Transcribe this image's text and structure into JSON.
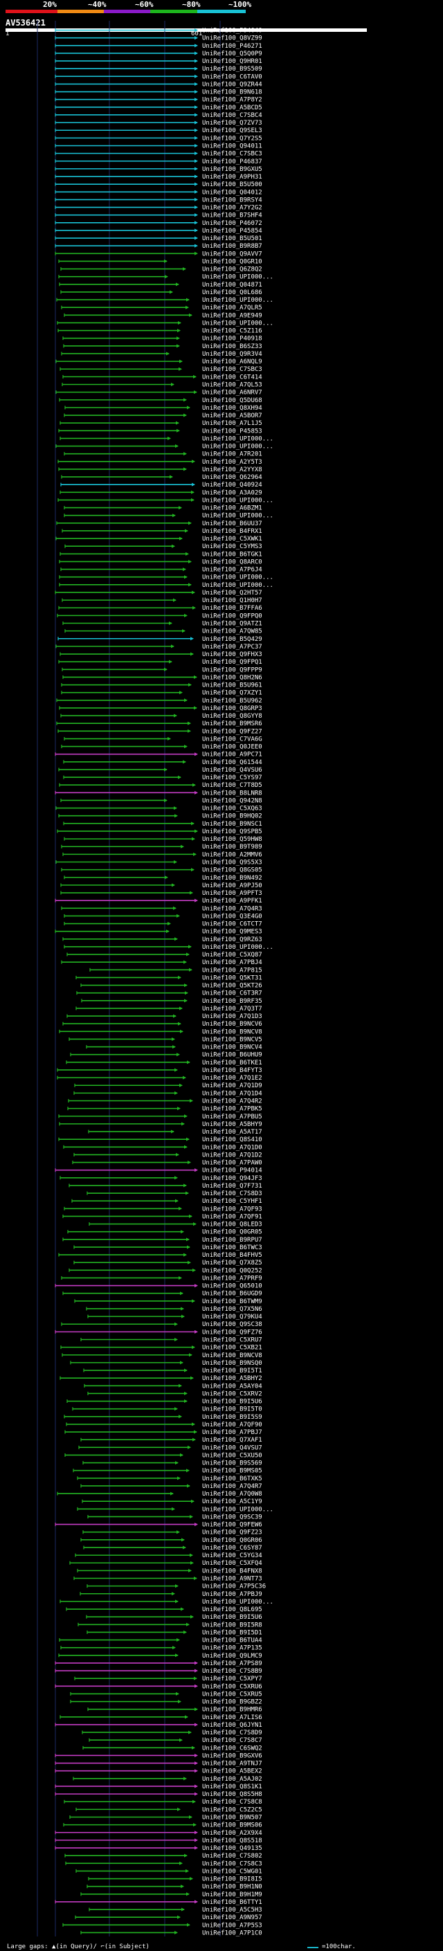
{
  "legend": {
    "labels": [
      "20%",
      "~40%",
      "~60%",
      "~80%",
      "~100%"
    ],
    "colors": [
      "#e0121a",
      "#f08a14",
      "#8a1ac9",
      "#1db51d",
      "#19c2d6"
    ]
  },
  "query": {
    "name": "AV536421",
    "start": "1",
    "end": "601"
  },
  "footer": {
    "text": "Large gaps: ▲(in Query)/ ⌐(in Subject)",
    "scale_label": "=100char."
  },
  "hits": [
    {
      "label": "UniRef100_P94040",
      "color": "cyan"
    },
    {
      "label": "UniRef100_Q8VZ99",
      "color": "cyan"
    },
    {
      "label": "UniRef100_P46271",
      "color": "cyan"
    },
    {
      "label": "UniRef100_Q5Q0P9",
      "color": "cyan"
    },
    {
      "label": "UniRef100_Q9HR01",
      "color": "cyan"
    },
    {
      "label": "UniRef100_B9S509",
      "color": "cyan"
    },
    {
      "label": "UniRef100_C6TAV0",
      "color": "cyan"
    },
    {
      "label": "UniRef100_Q9ZR44",
      "color": "cyan"
    },
    {
      "label": "UniRef100_B9N618",
      "color": "cyan"
    },
    {
      "label": "UniRef100_A7P8Y2",
      "color": "cyan"
    },
    {
      "label": "UniRef100_A5BCD5",
      "color": "cyan"
    },
    {
      "label": "UniRef100_C7SBC4",
      "color": "cyan"
    },
    {
      "label": "UniRef100_Q7ZV73",
      "color": "cyan"
    },
    {
      "label": "UniRef100_Q9SEL3",
      "color": "cyan"
    },
    {
      "label": "UniRef100_Q7Y2S5",
      "color": "cyan"
    },
    {
      "label": "UniRef100_Q94011",
      "color": "cyan"
    },
    {
      "label": "UniRef100_C7SBC3",
      "color": "cyan"
    },
    {
      "label": "UniRef100_P46837",
      "color": "cyan"
    },
    {
      "label": "UniRef100_B9GXU5",
      "color": "cyan"
    },
    {
      "label": "UniRef100_A9PH31",
      "color": "cyan"
    },
    {
      "label": "UniRef100_B5U500",
      "color": "cyan"
    },
    {
      "label": "UniRef100_Q04012",
      "color": "cyan"
    },
    {
      "label": "UniRef100_B9RSY4",
      "color": "cyan"
    },
    {
      "label": "UniRef100_A7Y2G2",
      "color": "cyan"
    },
    {
      "label": "UniRef100_B7SHF4",
      "color": "cyan"
    },
    {
      "label": "UniRef100_P46072",
      "color": "cyan"
    },
    {
      "label": "UniRef100_P45854",
      "color": "cyan"
    },
    {
      "label": "UniRef100_B5U501",
      "color": "cyan"
    },
    {
      "label": "UniRef100_B9R8B7",
      "color": "cyan"
    },
    {
      "label": "UniRef100_Q9AVV7",
      "color": "green"
    },
    {
      "label": "UniRef100_Q0GR10",
      "color": "green"
    },
    {
      "label": "UniRef100_Q6Z8Q2",
      "color": "green"
    },
    {
      "label": "UniRef100_UPI000...",
      "color": "green"
    },
    {
      "label": "UniRef100_Q04871",
      "color": "green"
    },
    {
      "label": "UniRef100_Q0L686",
      "color": "green"
    },
    {
      "label": "UniRef100_UPI000...",
      "color": "green"
    },
    {
      "label": "UniRef100_A7QLR5",
      "color": "green"
    },
    {
      "label": "UniRef100_A9E949",
      "color": "green"
    },
    {
      "label": "UniRef100_UPI000...",
      "color": "green"
    },
    {
      "label": "UniRef100_C5Z116",
      "color": "green"
    },
    {
      "label": "UniRef100_P40918",
      "color": "green"
    },
    {
      "label": "UniRef100_B6SZ33",
      "color": "green"
    },
    {
      "label": "UniRef100_Q9R3V4",
      "color": "green"
    },
    {
      "label": "UniRef100_A6NQL9",
      "color": "green"
    },
    {
      "label": "UniRef100_C7SBC3",
      "color": "green"
    },
    {
      "label": "UniRef100_C6T414",
      "color": "green"
    },
    {
      "label": "UniRef100_A7QL53",
      "color": "green"
    },
    {
      "label": "UniRef100_A6NRV7",
      "color": "green"
    },
    {
      "label": "UniRef100_Q5DU68",
      "color": "green"
    },
    {
      "label": "UniRef100_Q8XH94",
      "color": "green"
    },
    {
      "label": "UniRef100_A5BOR7",
      "color": "green"
    },
    {
      "label": "UniRef100_A7L1J5",
      "color": "green"
    },
    {
      "label": "UniRef100_P45853",
      "color": "green"
    },
    {
      "label": "UniRef100_UPI000...",
      "color": "green"
    },
    {
      "label": "UniRef100_UPI000...",
      "color": "green"
    },
    {
      "label": "UniRef100_A7R201",
      "color": "green"
    },
    {
      "label": "UniRef100_A2Y5T3",
      "color": "green"
    },
    {
      "label": "UniRef100_A2YYX8",
      "color": "green"
    },
    {
      "label": "UniRef100_Q62964",
      "color": "green"
    },
    {
      "label": "UniRef100_Q40924",
      "color": "cyan"
    },
    {
      "label": "UniRef100_A3A029",
      "color": "green"
    },
    {
      "label": "UniRef100_UPI000...",
      "color": "green"
    },
    {
      "label": "UniRef100_A6BZM1",
      "color": "green"
    },
    {
      "label": "UniRef100_UPI000...",
      "color": "green"
    },
    {
      "label": "UniRef100_B6UU37",
      "color": "green"
    },
    {
      "label": "UniRef100_B4FRX1",
      "color": "green"
    },
    {
      "label": "UniRef100_C5XWK1",
      "color": "green"
    },
    {
      "label": "UniRef100_C5YMS3",
      "color": "green"
    },
    {
      "label": "UniRef100_B6TGK1",
      "color": "green"
    },
    {
      "label": "UniRef100_Q8ARC0",
      "color": "green"
    },
    {
      "label": "UniRef100_A7P6J4",
      "color": "green"
    },
    {
      "label": "UniRef100_UPI000...",
      "color": "green"
    },
    {
      "label": "UniRef100_UPI000...",
      "color": "green"
    },
    {
      "label": "UniRef100_Q2HT57",
      "color": "green"
    },
    {
      "label": "UniRef100_Q1H0H7",
      "color": "green"
    },
    {
      "label": "UniRef100_B7FFA6",
      "color": "green"
    },
    {
      "label": "UniRef100_Q9FPQ0",
      "color": "green"
    },
    {
      "label": "UniRef100_Q9ATZ1",
      "color": "green"
    },
    {
      "label": "UniRef100_A7QW85",
      "color": "green"
    },
    {
      "label": "UniRef100_B5Q429",
      "color": "cyan"
    },
    {
      "label": "UniRef100_A7PC37",
      "color": "green"
    },
    {
      "label": "UniRef100_Q9FHX3",
      "color": "green"
    },
    {
      "label": "UniRef100_Q9FPQ1",
      "color": "green"
    },
    {
      "label": "UniRef100_Q9FPP9",
      "color": "green"
    },
    {
      "label": "UniRef100_Q8H2N6",
      "color": "green"
    },
    {
      "label": "UniRef100_B5U961",
      "color": "green"
    },
    {
      "label": "UniRef100_Q7XZY1",
      "color": "green"
    },
    {
      "label": "UniRef100_B5U962",
      "color": "green"
    },
    {
      "label": "UniRef100_Q8GRP3",
      "color": "green"
    },
    {
      "label": "UniRef100_Q8GYY8",
      "color": "green"
    },
    {
      "label": "UniRef100_B9MSR6",
      "color": "green"
    },
    {
      "label": "UniRef100_Q9FZ27",
      "color": "green"
    },
    {
      "label": "UniRef100_C7VA6G",
      "color": "green"
    },
    {
      "label": "UniRef100_Q0JEE0",
      "color": "green"
    },
    {
      "label": "UniRef100_A9PC71",
      "color": "magenta"
    },
    {
      "label": "UniRef100_Q61544",
      "color": "green"
    },
    {
      "label": "UniRef100_Q4VSU6",
      "color": "green"
    },
    {
      "label": "UniRef100_C5YS97",
      "color": "green"
    },
    {
      "label": "UniRef100_C7T8D5",
      "color": "green"
    },
    {
      "label": "UniRef100_B8LNR8",
      "color": "magenta"
    },
    {
      "label": "UniRef100_Q942N8",
      "color": "green"
    },
    {
      "label": "UniRef100_C5XQ63",
      "color": "green"
    },
    {
      "label": "UniRef100_B9HQ02",
      "color": "green"
    },
    {
      "label": "UniRef100_B9NSC1",
      "color": "green"
    },
    {
      "label": "UniRef100_Q9SPB5",
      "color": "green"
    },
    {
      "label": "UniRef100_Q59HW8",
      "color": "green"
    },
    {
      "label": "UniRef100_B9T989",
      "color": "green"
    },
    {
      "label": "UniRef100_A2MMV6",
      "color": "green"
    },
    {
      "label": "UniRef100_Q9S5X3",
      "color": "green"
    },
    {
      "label": "UniRef100_Q8GS05",
      "color": "green"
    },
    {
      "label": "UniRef100_B9N492",
      "color": "green"
    },
    {
      "label": "UniRef100_A9PJ50",
      "color": "green"
    },
    {
      "label": "UniRef100_A9PFT3",
      "color": "green"
    },
    {
      "label": "UniRef100_A9PFK1",
      "color": "magenta"
    },
    {
      "label": "UniRef100_A7Q4R3",
      "color": "green"
    },
    {
      "label": "UniRef100_Q3E4G0",
      "color": "green"
    },
    {
      "label": "UniRef100_C6TCT7",
      "color": "green"
    },
    {
      "label": "UniRef100_Q9MES3",
      "color": "green"
    },
    {
      "label": "UniRef100_Q9RZ63",
      "color": "green"
    },
    {
      "label": "UniRef100_UPI000...",
      "color": "green"
    },
    {
      "label": "UniRef100_C5XQ87",
      "color": "green"
    },
    {
      "label": "UniRef100_A7PBJ4",
      "color": "green"
    },
    {
      "label": "UniRef100_A7P815",
      "color": "green"
    },
    {
      "label": "UniRef100_Q5KT31",
      "color": "green"
    },
    {
      "label": "UniRef100_Q5KT26",
      "color": "green"
    },
    {
      "label": "UniRef100_C6T3R7",
      "color": "green"
    },
    {
      "label": "UniRef100_B9RF35",
      "color": "green"
    },
    {
      "label": "UniRef100_A7Q3T7",
      "color": "green"
    },
    {
      "label": "UniRef100_A7Q1D3",
      "color": "green"
    },
    {
      "label": "UniRef100_B9NCV6",
      "color": "green"
    },
    {
      "label": "UniRef100_B9NCV8",
      "color": "green"
    },
    {
      "label": "UniRef100_B9NCV5",
      "color": "green"
    },
    {
      "label": "UniRef100_B9NCV4",
      "color": "green"
    },
    {
      "label": "UniRef100_B6UHU9",
      "color": "green"
    },
    {
      "label": "UniRef100_B6TKE1",
      "color": "green"
    },
    {
      "label": "UniRef100_B4FYT3",
      "color": "green"
    },
    {
      "label": "UniRef100_A7Q1E2",
      "color": "green"
    },
    {
      "label": "UniRef100_A7Q1D9",
      "color": "green"
    },
    {
      "label": "UniRef100_A7Q1D4",
      "color": "green"
    },
    {
      "label": "UniRef100_A7Q4R2",
      "color": "green"
    },
    {
      "label": "UniRef100_A7PBK5",
      "color": "green"
    },
    {
      "label": "UniRef100_A7PBU5",
      "color": "green"
    },
    {
      "label": "UniRef100_A5BHY9",
      "color": "green"
    },
    {
      "label": "UniRef100_A5AT17",
      "color": "green"
    },
    {
      "label": "UniRef100_Q8S410",
      "color": "green"
    },
    {
      "label": "UniRef100_A7Q1D0",
      "color": "green"
    },
    {
      "label": "UniRef100_A7Q1D2",
      "color": "green"
    },
    {
      "label": "UniRef100_A7PAW0",
      "color": "green"
    },
    {
      "label": "UniRef100_P94014",
      "color": "magenta"
    },
    {
      "label": "UniRef100_Q94JF3",
      "color": "green"
    },
    {
      "label": "UniRef100_Q7F731",
      "color": "green"
    },
    {
      "label": "UniRef100_C7S8D3",
      "color": "green"
    },
    {
      "label": "UniRef100_C5YHF1",
      "color": "green"
    },
    {
      "label": "UniRef100_A7QF93",
      "color": "green"
    },
    {
      "label": "UniRef100_A7QF91",
      "color": "green"
    },
    {
      "label": "UniRef100_Q8LED3",
      "color": "green"
    },
    {
      "label": "UniRef100_Q0GR05",
      "color": "green"
    },
    {
      "label": "UniRef100_B9RPU7",
      "color": "green"
    },
    {
      "label": "UniRef100_B6TWC3",
      "color": "green"
    },
    {
      "label": "UniRef100_B4FHV5",
      "color": "green"
    },
    {
      "label": "UniRef100_Q7X8Z5",
      "color": "green"
    },
    {
      "label": "UniRef100_Q0Q252",
      "color": "green"
    },
    {
      "label": "UniRef100_A7PRF9",
      "color": "green"
    },
    {
      "label": "UniRef100_Q65010",
      "color": "magenta"
    },
    {
      "label": "UniRef100_B6UGD9",
      "color": "green"
    },
    {
      "label": "UniRef100_B6TWM9",
      "color": "green"
    },
    {
      "label": "UniRef100_Q7X5N6",
      "color": "green"
    },
    {
      "label": "UniRef100_Q79KU4",
      "color": "green"
    },
    {
      "label": "UniRef100_Q9SC38",
      "color": "green"
    },
    {
      "label": "UniRef100_Q9FZ76",
      "color": "magenta"
    },
    {
      "label": "UniRef100_C5XRU7",
      "color": "green"
    },
    {
      "label": "UniRef100_C5XB21",
      "color": "green"
    },
    {
      "label": "UniRef100_B9NCV8",
      "color": "green"
    },
    {
      "label": "UniRef100_B9NSQ0",
      "color": "green"
    },
    {
      "label": "UniRef100_B9I5T1",
      "color": "green"
    },
    {
      "label": "UniRef100_A5BHY2",
      "color": "green"
    },
    {
      "label": "UniRef100_A5AY04",
      "color": "green"
    },
    {
      "label": "UniRef100_C5XRV2",
      "color": "green"
    },
    {
      "label": "UniRef100_B9I5U6",
      "color": "green"
    },
    {
      "label": "UniRef100_B9I5T0",
      "color": "green"
    },
    {
      "label": "UniRef100_B9I5S9",
      "color": "green"
    },
    {
      "label": "UniRef100_A7QF90",
      "color": "green"
    },
    {
      "label": "UniRef100_A7PBJ7",
      "color": "green"
    },
    {
      "label": "UniRef100_Q7XAF1",
      "color": "green"
    },
    {
      "label": "UniRef100_Q4VSU7",
      "color": "green"
    },
    {
      "label": "UniRef100_C5XU50",
      "color": "green"
    },
    {
      "label": "UniRef100_B9S569",
      "color": "green"
    },
    {
      "label": "UniRef100_B9MS05",
      "color": "green"
    },
    {
      "label": "UniRef100_B6TXK5",
      "color": "green"
    },
    {
      "label": "UniRef100_A7Q4R7",
      "color": "green"
    },
    {
      "label": "UniRef100_A7Q0W8",
      "color": "green"
    },
    {
      "label": "UniRef100_A5C1Y9",
      "color": "green"
    },
    {
      "label": "UniRef100_UPI000...",
      "color": "green"
    },
    {
      "label": "UniRef100_Q9SC39",
      "color": "green"
    },
    {
      "label": "UniRef100_Q9FEW6",
      "color": "magenta"
    },
    {
      "label": "UniRef100_Q9FZ23",
      "color": "green"
    },
    {
      "label": "UniRef100_Q0GR06",
      "color": "green"
    },
    {
      "label": "UniRef100_C6SY87",
      "color": "green"
    },
    {
      "label": "UniRef100_C5YG34",
      "color": "green"
    },
    {
      "label": "UniRef100_C5XFQ4",
      "color": "green"
    },
    {
      "label": "UniRef100_B4FNX8",
      "color": "green"
    },
    {
      "label": "UniRef100_A9NT73",
      "color": "green"
    },
    {
      "label": "UniRef100_A7P5C36",
      "color": "green"
    },
    {
      "label": "UniRef100_A7PBJ9",
      "color": "green"
    },
    {
      "label": "UniRef100_UPI000...",
      "color": "green"
    },
    {
      "label": "UniRef100_Q8L695",
      "color": "green"
    },
    {
      "label": "UniRef100_B9I5U6",
      "color": "green"
    },
    {
      "label": "UniRef100_B9I5R8",
      "color": "green"
    },
    {
      "label": "UniRef100_B9I5D1",
      "color": "green"
    },
    {
      "label": "UniRef100_B6TUA4",
      "color": "green"
    },
    {
      "label": "UniRef100_A7P135",
      "color": "green"
    },
    {
      "label": "UniRef100_Q9LMC9",
      "color": "green"
    },
    {
      "label": "UniRef100_A7PS89",
      "color": "magenta"
    },
    {
      "label": "UniRef100_C7S8B9",
      "color": "magenta"
    },
    {
      "label": "UniRef100_C5XPY7",
      "color": "green"
    },
    {
      "label": "UniRef100_C5XRU6",
      "color": "magenta"
    },
    {
      "label": "UniRef100_C5XRU5",
      "color": "green"
    },
    {
      "label": "UniRef100_B9GBZ2",
      "color": "green"
    },
    {
      "label": "UniRef100_B9HMR6",
      "color": "green"
    },
    {
      "label": "UniRef100_A7LIS6",
      "color": "green"
    },
    {
      "label": "UniRef100_Q6JYN1",
      "color": "magenta"
    },
    {
      "label": "UniRef100_C7S8D9",
      "color": "green"
    },
    {
      "label": "UniRef100_C7S8C7",
      "color": "green"
    },
    {
      "label": "UniRef100_C6SWQ2",
      "color": "green"
    },
    {
      "label": "UniRef100_B9GXV6",
      "color": "magenta"
    },
    {
      "label": "UniRef100_A9TNJ7",
      "color": "magenta"
    },
    {
      "label": "UniRef100_A5BEX2",
      "color": "magenta"
    },
    {
      "label": "UniRef100_A5AJ02",
      "color": "green"
    },
    {
      "label": "UniRef100_Q8S1K1",
      "color": "magenta"
    },
    {
      "label": "UniRef100_Q8S5H8",
      "color": "magenta"
    },
    {
      "label": "UniRef100_C7S8C8",
      "color": "green"
    },
    {
      "label": "UniRef100_C5Z2C5",
      "color": "green"
    },
    {
      "label": "UniRef100_B9N507",
      "color": "green"
    },
    {
      "label": "UniRef100_B9MS06",
      "color": "green"
    },
    {
      "label": "UniRef100_A2X9X4",
      "color": "magenta"
    },
    {
      "label": "UniRef100_Q8S518",
      "color": "magenta"
    },
    {
      "label": "UniRef100_Q49135",
      "color": "magenta"
    },
    {
      "label": "UniRef100_C7S802",
      "color": "green"
    },
    {
      "label": "UniRef100_C7S8C3",
      "color": "green"
    },
    {
      "label": "UniRef100_C5WG01",
      "color": "green"
    },
    {
      "label": "UniRef100_B9I8I5",
      "color": "green"
    },
    {
      "label": "UniRef100_B9H1N0",
      "color": "green"
    },
    {
      "label": "UniRef100_B9H1M9",
      "color": "green"
    },
    {
      "label": "UniRef100_B6TTY1",
      "color": "magenta"
    },
    {
      "label": "UniRef100_A5C5H3",
      "color": "green"
    },
    {
      "label": "UniRef100_A9N957",
      "color": "green"
    },
    {
      "label": "UniRef100_A7P5S3",
      "color": "green"
    },
    {
      "label": "UniRef100_A7P1C0",
      "color": "green"
    }
  ]
}
